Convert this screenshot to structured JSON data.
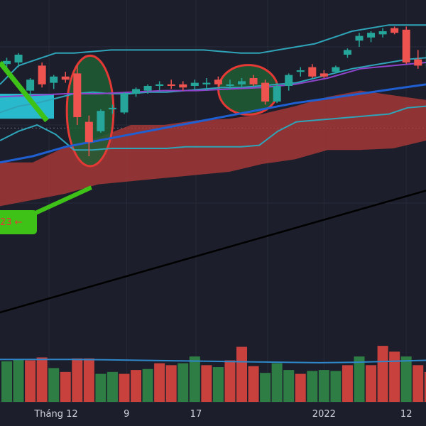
{
  "chart_data": {
    "type": "candlestick",
    "price_range": [
      0,
      100
    ],
    "volume_range": [
      0,
      100
    ],
    "colors": {
      "bull": "#26a69a",
      "bear": "#ef5350",
      "volume_bull": "#2e7d45",
      "volume_bear": "#c8413d",
      "bollinger": "#2fa3b8",
      "cloud": "#b03a37",
      "ema_purple": "#8e44c9",
      "ma_blue": "#1f5fd1",
      "trend_line": "#000000",
      "volume_ma": "#2f86c8",
      "highlight_fill": "#1f5e34",
      "highlight_stroke": "#e53935",
      "arrow_green": "#3ec218",
      "zone_cyan": "#28b9cc"
    },
    "candles": [
      {
        "o": 79.5,
        "h": 81.5,
        "l": 77.0,
        "c": 80.5
      },
      {
        "o": 80.0,
        "h": 83.0,
        "l": 78.5,
        "c": 82.5
      },
      {
        "o": 71.0,
        "h": 75.0,
        "l": 68.0,
        "c": 74.5
      },
      {
        "o": 79.0,
        "h": 80.0,
        "l": 72.0,
        "c": 73.0
      },
      {
        "o": 73.5,
        "h": 76.0,
        "l": 71.5,
        "c": 75.5
      },
      {
        "o": 75.5,
        "h": 77.0,
        "l": 73.5,
        "c": 74.5
      },
      {
        "o": 76.5,
        "h": 79.0,
        "l": 60.0,
        "c": 62.5
      },
      {
        "o": 61.0,
        "h": 63.0,
        "l": 50.0,
        "c": 54.5
      },
      {
        "o": 58.0,
        "h": 65.0,
        "l": 57.5,
        "c": 64.5
      },
      {
        "o": 65.0,
        "h": 66.5,
        "l": 63.5,
        "c": 65.5
      },
      {
        "o": 64.0,
        "h": 70.5,
        "l": 63.5,
        "c": 70.0
      },
      {
        "o": 70.0,
        "h": 72.0,
        "l": 69.0,
        "c": 71.5
      },
      {
        "o": 71.0,
        "h": 73.0,
        "l": 70.0,
        "c": 72.5
      },
      {
        "o": 72.5,
        "h": 74.0,
        "l": 71.0,
        "c": 73.0
      },
      {
        "o": 73.0,
        "h": 74.5,
        "l": 71.5,
        "c": 72.5
      },
      {
        "o": 73.0,
        "h": 74.0,
        "l": 71.0,
        "c": 72.0
      },
      {
        "o": 72.5,
        "h": 74.5,
        "l": 71.5,
        "c": 73.5
      },
      {
        "o": 73.0,
        "h": 75.0,
        "l": 71.0,
        "c": 73.5
      },
      {
        "o": 74.5,
        "h": 75.5,
        "l": 72.5,
        "c": 73.0
      },
      {
        "o": 72.5,
        "h": 74.5,
        "l": 71.5,
        "c": 73.0
      },
      {
        "o": 73.0,
        "h": 75.0,
        "l": 72.0,
        "c": 74.0
      },
      {
        "o": 75.0,
        "h": 76.0,
        "l": 72.5,
        "c": 73.0
      },
      {
        "o": 73.5,
        "h": 74.5,
        "l": 66.5,
        "c": 67.5
      },
      {
        "o": 67.5,
        "h": 73.5,
        "l": 67.0,
        "c": 72.5
      },
      {
        "o": 72.5,
        "h": 76.5,
        "l": 71.0,
        "c": 76.0
      },
      {
        "o": 77.0,
        "h": 78.5,
        "l": 75.5,
        "c": 77.5
      },
      {
        "o": 78.5,
        "h": 79.5,
        "l": 75.0,
        "c": 75.5
      },
      {
        "o": 76.5,
        "h": 77.5,
        "l": 75.0,
        "c": 75.5
      },
      {
        "o": 77.0,
        "h": 79.0,
        "l": 76.5,
        "c": 78.5
      },
      {
        "o": 82.5,
        "h": 84.5,
        "l": 81.5,
        "c": 84.0
      },
      {
        "o": 87.0,
        "h": 89.5,
        "l": 85.0,
        "c": 88.5
      },
      {
        "o": 88.0,
        "h": 90.0,
        "l": 86.5,
        "c": 89.5
      },
      {
        "o": 89.0,
        "h": 91.0,
        "l": 88.0,
        "c": 90.0
      },
      {
        "o": 91.0,
        "h": 91.5,
        "l": 89.0,
        "c": 89.5
      },
      {
        "o": 90.5,
        "h": 91.5,
        "l": 79.5,
        "c": 80.0
      },
      {
        "o": 81.0,
        "h": 84.0,
        "l": 78.0,
        "c": 79.0
      },
      {
        "o": 78.5,
        "h": 84.5,
        "l": 70.0,
        "c": 84.0
      },
      {
        "o": 85.0,
        "h": 86.5,
        "l": 78.5,
        "c": 79.5
      },
      {
        "o": 75.0,
        "h": 80.5,
        "l": 74.0,
        "c": 80.0
      }
    ],
    "volumes": [
      {
        "v": 42,
        "dir": "up"
      },
      {
        "v": 44,
        "dir": "up"
      },
      {
        "v": 43,
        "dir": "down"
      },
      {
        "v": 46,
        "dir": "down"
      },
      {
        "v": 35,
        "dir": "up"
      },
      {
        "v": 31,
        "dir": "down"
      },
      {
        "v": 45,
        "dir": "down"
      },
      {
        "v": 45,
        "dir": "down"
      },
      {
        "v": 29,
        "dir": "up"
      },
      {
        "v": 31,
        "dir": "up"
      },
      {
        "v": 29,
        "dir": "down"
      },
      {
        "v": 33,
        "dir": "down"
      },
      {
        "v": 34,
        "dir": "up"
      },
      {
        "v": 40,
        "dir": "down"
      },
      {
        "v": 38,
        "dir": "down"
      },
      {
        "v": 40,
        "dir": "up"
      },
      {
        "v": 47,
        "dir": "up"
      },
      {
        "v": 38,
        "dir": "down"
      },
      {
        "v": 36,
        "dir": "up"
      },
      {
        "v": 43,
        "dir": "down"
      },
      {
        "v": 57,
        "dir": "down"
      },
      {
        "v": 37,
        "dir": "down"
      },
      {
        "v": 30,
        "dir": "up"
      },
      {
        "v": 40,
        "dir": "up"
      },
      {
        "v": 33,
        "dir": "up"
      },
      {
        "v": 29,
        "dir": "down"
      },
      {
        "v": 32,
        "dir": "up"
      },
      {
        "v": 33,
        "dir": "up"
      },
      {
        "v": 32,
        "dir": "up"
      },
      {
        "v": 38,
        "dir": "down"
      },
      {
        "v": 47,
        "dir": "up"
      },
      {
        "v": 38,
        "dir": "down"
      },
      {
        "v": 58,
        "dir": "down"
      },
      {
        "v": 52,
        "dir": "down"
      },
      {
        "v": 47,
        "dir": "up"
      },
      {
        "v": 38,
        "dir": "down"
      },
      {
        "v": 31,
        "dir": "down"
      },
      {
        "v": 27,
        "dir": "down"
      },
      {
        "v": 24,
        "dir": "down"
      }
    ],
    "bollinger_upper": [
      73,
      79,
      81,
      83,
      83,
      83.5,
      84,
      84,
      84,
      84,
      84,
      84,
      83.5,
      83,
      83,
      84,
      85,
      86,
      88,
      90,
      91,
      92,
      92,
      92
    ],
    "bollinger_mid": [
      64,
      66,
      67,
      68.5,
      70,
      70.5,
      70,
      70,
      70.5,
      70.5,
      71,
      71.5,
      72,
      72,
      72.5,
      73,
      73.5,
      75,
      76.5,
      78,
      79,
      80,
      81,
      81.5
    ],
    "bollinger_lower": [
      55,
      58,
      60,
      57,
      52,
      52,
      52.5,
      52.5,
      52.5,
      52.5,
      53,
      53,
      53,
      53,
      53.5,
      58,
      61,
      61.5,
      62,
      62.5,
      63,
      63.5,
      65.5,
      66
    ],
    "ema_purple": [
      69,
      69.5,
      70,
      70,
      70.5,
      71,
      71,
      71.5,
      72,
      73,
      75,
      78,
      79,
      80
    ],
    "ma_blue": [
      48,
      50,
      53,
      55,
      57,
      59,
      61,
      63,
      65,
      67,
      68.5,
      70,
      71.5,
      73
    ],
    "cloud_top": [
      48,
      48,
      53,
      56,
      60,
      60,
      61.5,
      62,
      63.5,
      66,
      69,
      71,
      69.5,
      68
    ],
    "cloud_bottom": [
      34,
      36,
      38,
      41,
      42,
      43,
      44,
      45,
      47.5,
      49,
      52,
      52,
      52.5,
      55
    ],
    "trend_line": [
      0,
      39
    ],
    "volume_ma": [
      44,
      44,
      44,
      43.5,
      43,
      42.5,
      42,
      41.5,
      41,
      40.5,
      41,
      42,
      43
    ],
    "x_labels": [
      {
        "label": "Tháng 12",
        "candle": 4.2
      },
      {
        "label": "9",
        "candle": 10.2
      },
      {
        "label": "17",
        "candle": 16.1
      },
      {
        "label": "2022",
        "candle": 27.0
      },
      {
        "label": "12",
        "candle": 34.0
      }
    ],
    "badge_text": "23 ←",
    "highlight_ranges": [
      [
        5.6,
        8.6
      ],
      [
        18.5,
        22.6
      ]
    ]
  }
}
